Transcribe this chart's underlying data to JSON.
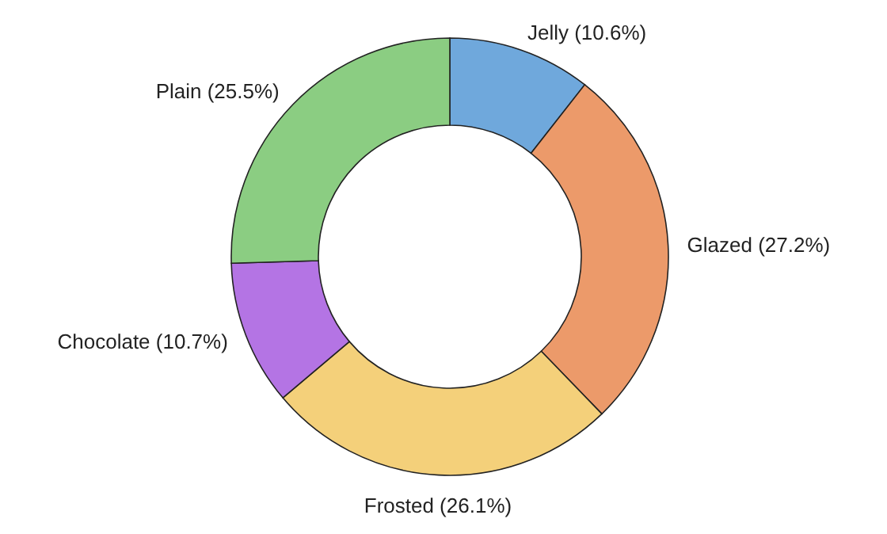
{
  "chart_data": {
    "type": "donut",
    "categories": [
      "Jelly",
      "Glazed",
      "Frosted",
      "Chocolate",
      "Plain"
    ],
    "values": [
      10.6,
      27.2,
      26.1,
      10.7,
      25.5
    ],
    "value_labels": [
      "(10.6%)",
      "(27.2%)",
      "(26.1%)",
      "(10.7%)",
      "(25.5%)"
    ],
    "colors": [
      "#6fa8dc",
      "#ec9a6a",
      "#f4d07a",
      "#b474e4",
      "#8bcd82"
    ]
  }
}
